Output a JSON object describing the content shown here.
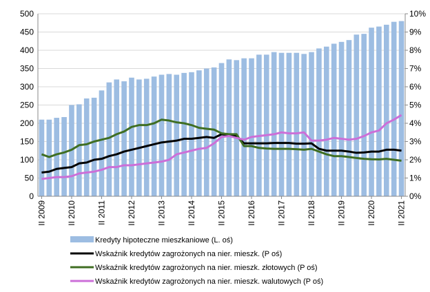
{
  "chart_data": {
    "type": "bar_line",
    "categories": [
      "II 2009",
      null,
      null,
      null,
      "II 2010",
      null,
      null,
      null,
      "II 2011",
      null,
      null,
      null,
      "II 2012",
      null,
      null,
      null,
      "II 2013",
      null,
      null,
      null,
      "II 2014",
      null,
      null,
      null,
      "II 2015",
      null,
      null,
      null,
      "II 2016",
      null,
      null,
      null,
      "II 2017",
      null,
      null,
      null,
      "II 2018",
      null,
      null,
      null,
      "II 2019",
      null,
      null,
      null,
      "II 2020",
      null,
      null,
      null,
      "II 2021"
    ],
    "series": [
      {
        "name": "Kredyty hipoteczne mieszkaniowe (L. oś)",
        "type": "bar",
        "color": "#9dbde2",
        "values": [
          210,
          210,
          215,
          217,
          250,
          252,
          268,
          270,
          290,
          312,
          320,
          315,
          325,
          320,
          322,
          328,
          333,
          335,
          333,
          338,
          340,
          345,
          350,
          353,
          365,
          375,
          373,
          378,
          378,
          388,
          388,
          395,
          393,
          393,
          393,
          390,
          395,
          405,
          410,
          418,
          423,
          428,
          443,
          445,
          462,
          465,
          470,
          478,
          480
        ]
      },
      {
        "name": "Wskaźnik kredytów zagrożonych na nier. mieszk. (P oś)",
        "type": "line",
        "axis": "y2",
        "color": "#000000",
        "values": [
          1.3,
          1.35,
          1.5,
          1.55,
          1.6,
          1.8,
          1.85,
          2.0,
          2.05,
          2.2,
          2.3,
          2.45,
          2.55,
          2.65,
          2.75,
          2.85,
          2.95,
          3.0,
          3.05,
          3.15,
          3.15,
          3.2,
          3.25,
          3.2,
          3.4,
          3.35,
          3.3,
          2.9,
          2.9,
          2.9,
          2.9,
          2.92,
          2.92,
          2.92,
          2.88,
          2.88,
          2.9,
          2.6,
          2.5,
          2.5,
          2.5,
          2.45,
          2.38,
          2.4,
          2.45,
          2.45,
          2.55,
          2.55,
          2.5
        ]
      },
      {
        "name": "Wskaźnik kredytów zagrożonych na nier. mieszk. złotowych (P oś)",
        "type": "line",
        "axis": "y2",
        "color": "#3f6e22",
        "values": [
          2.3,
          2.15,
          2.3,
          2.4,
          2.55,
          2.8,
          2.85,
          3.0,
          3.1,
          3.2,
          3.4,
          3.55,
          3.8,
          3.9,
          3.9,
          4.0,
          4.2,
          4.15,
          4.05,
          4.0,
          3.9,
          3.75,
          3.7,
          3.65,
          3.45,
          3.4,
          3.4,
          2.75,
          2.75,
          2.65,
          2.62,
          2.6,
          2.6,
          2.6,
          2.58,
          2.55,
          2.6,
          2.45,
          2.3,
          2.2,
          2.2,
          2.15,
          2.1,
          2.05,
          2.03,
          2.02,
          2.05,
          2.0,
          1.95
        ]
      },
      {
        "name": "Wskaźnik kredytów zagrożonych na nier. mieszk. walutowych (P oś)",
        "type": "line",
        "axis": "y2",
        "color": "#cc6fd8",
        "values": [
          0.95,
          1.0,
          1.05,
          1.05,
          1.1,
          1.25,
          1.3,
          1.35,
          1.45,
          1.6,
          1.6,
          1.7,
          1.7,
          1.75,
          1.8,
          1.85,
          1.9,
          2.0,
          2.3,
          2.4,
          2.5,
          2.6,
          2.65,
          2.9,
          3.25,
          3.3,
          3.2,
          3.1,
          3.25,
          3.3,
          3.35,
          3.4,
          3.5,
          3.45,
          3.45,
          3.5,
          3.05,
          3.05,
          3.1,
          3.2,
          3.15,
          3.1,
          3.15,
          3.3,
          3.5,
          3.6,
          4.0,
          4.2,
          4.45
        ]
      }
    ],
    "ylim": [
      0,
      500
    ],
    "yticks": [
      0,
      50,
      100,
      150,
      200,
      250,
      300,
      350,
      400,
      450,
      500
    ],
    "y2lim": [
      0,
      10
    ],
    "y2ticks": [
      {
        "value": 0,
        "label": "0%"
      },
      {
        "value": 1,
        "label": "1%"
      },
      {
        "value": 2,
        "label": "2%"
      },
      {
        "value": 3,
        "label": "3%"
      },
      {
        "value": 4,
        "label": "4%"
      },
      {
        "value": 5,
        "label": "5%"
      },
      {
        "value": 6,
        "label": "6%"
      },
      {
        "value": 7,
        "label": "7%"
      },
      {
        "value": 8,
        "label": "8%"
      },
      {
        "value": 9,
        "label": "9%"
      },
      {
        "value": 10,
        "label": "10%"
      }
    ],
    "grid": true,
    "legend": "bottom"
  }
}
